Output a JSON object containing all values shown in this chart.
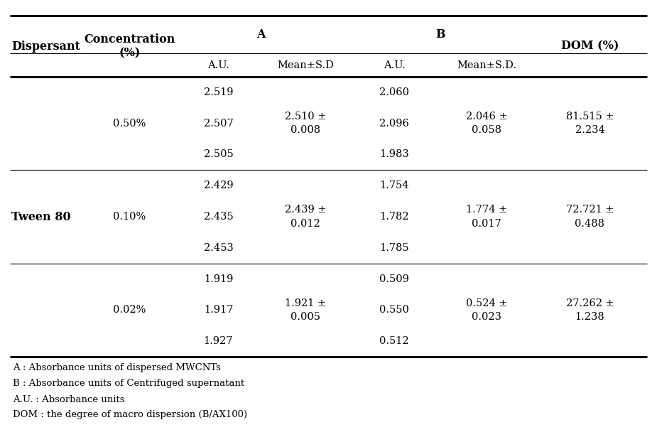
{
  "background_color": "#ffffff",
  "dispersant": "Tween 80",
  "concentrations": [
    "0.50%",
    "0.10%",
    "0.02%"
  ],
  "A_AU": [
    [
      "2.519",
      "2.507",
      "2.505"
    ],
    [
      "2.429",
      "2.435",
      "2.453"
    ],
    [
      "1.919",
      "1.917",
      "1.927"
    ]
  ],
  "A_mean_sd_line1": [
    "2.510 ±",
    "2.439 ±",
    "1.921 ±"
  ],
  "A_mean_sd_line2": [
    "0.008",
    "0.012",
    "0.005"
  ],
  "B_AU": [
    [
      "2.060",
      "2.096",
      "1.983"
    ],
    [
      "1.754",
      "1.782",
      "1.785"
    ],
    [
      "0.509",
      "0.550",
      "0.512"
    ]
  ],
  "B_mean_sd_line1": [
    "2.046 ±",
    "1.774 ±",
    "0.524 ±"
  ],
  "B_mean_sd_line2": [
    "0.058",
    "0.017",
    "0.023"
  ],
  "DOM_line1": [
    "81.515 ±",
    "72.721 ±",
    "27.262 ±"
  ],
  "DOM_line2": [
    "2.234",
    "0.488",
    "1.238"
  ],
  "footnotes": [
    "A : Absorbance units of dispersed MWCNTs",
    "B : Absorbance units of Centrifuged supernatant",
    "A.U. : Absorbance units",
    "DOM : the degree of macro dispersion (B/AX100)"
  ],
  "text_color": "#000000",
  "line_color": "#000000",
  "font_size": 10.5,
  "header_font_size": 11.5,
  "footnote_font_size": 9.5
}
